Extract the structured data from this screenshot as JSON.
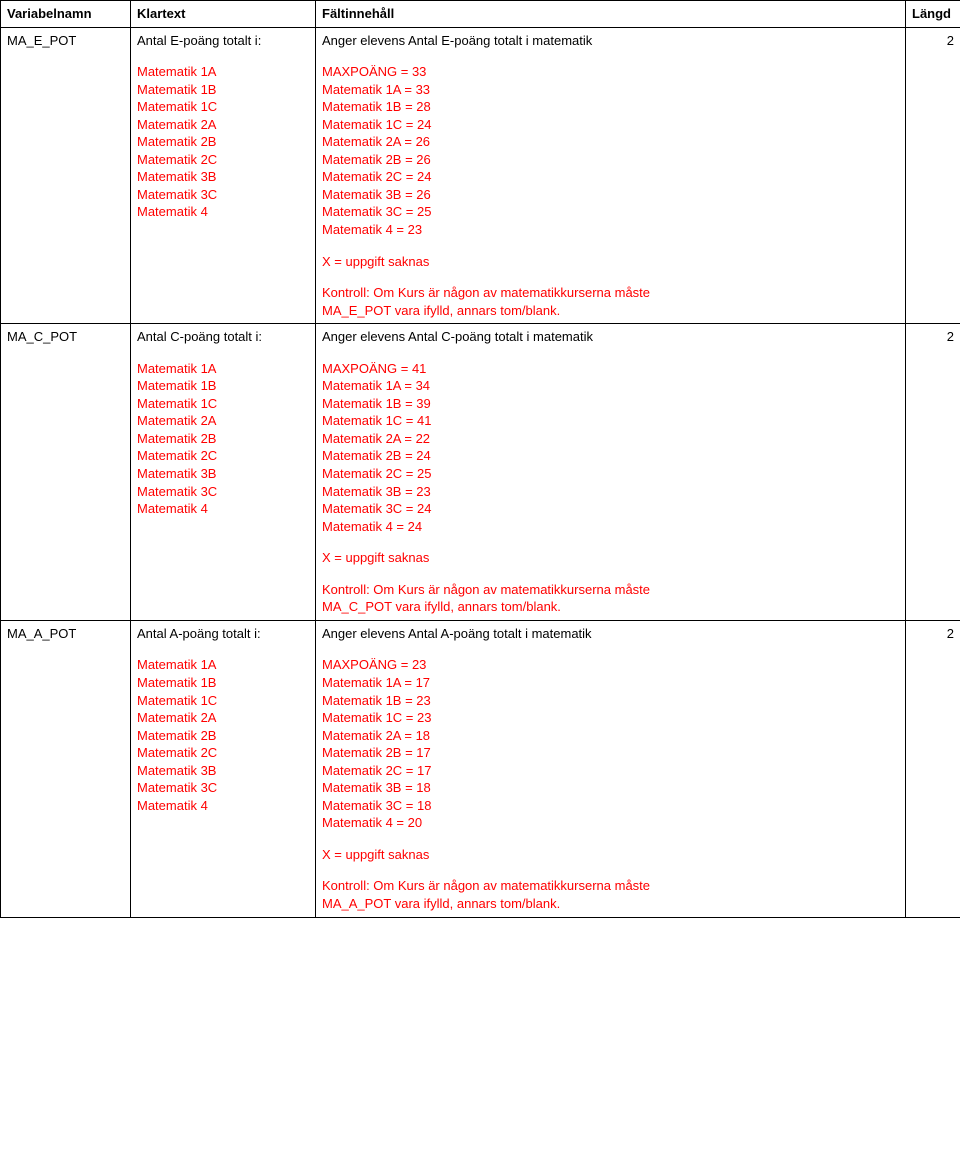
{
  "headers": {
    "var": "Variabelnamn",
    "klar": "Klartext",
    "falt": "Fältinnehåll",
    "len": "Längd"
  },
  "math_courses": [
    "Matematik 1A",
    "Matematik 1B",
    "Matematik 1C",
    "Matematik 2A",
    "Matematik 2B",
    "Matematik 2C",
    "Matematik 3B",
    "Matematik 3C",
    "Matematik 4"
  ],
  "rows": [
    {
      "var": "MA_E_POT",
      "klar_top": "Antal E-poäng totalt i:",
      "angere": "Anger elevens Antal E-poäng totalt i matematik",
      "max": "MAXPOÄNG = 33",
      "vals": [
        "Matematik 1A = 33",
        "Matematik 1B = 28",
        "Matematik 1C = 24",
        "Matematik 2A = 26",
        "Matematik 2B = 26",
        "Matematik 2C = 24",
        "Matematik 3B = 26",
        "Matematik 3C = 25",
        "Matematik 4 = 23"
      ],
      "x": "X = uppgift saknas",
      "kontroll1": "Kontroll: Om Kurs är någon av matematikkurserna måste",
      "kontroll2": "MA_E_POT vara ifylld, annars tom/blank.",
      "len": "2"
    },
    {
      "var": "MA_C_POT",
      "klar_top": "Antal C-poäng totalt i:",
      "angere": " Anger elevens Antal C-poäng totalt i matematik",
      "max": "MAXPOÄNG = 41",
      "vals": [
        "Matematik 1A = 34",
        "Matematik 1B = 39",
        "Matematik 1C = 41",
        "Matematik 2A = 22",
        "Matematik 2B = 24",
        "Matematik 2C = 25",
        "Matematik 3B = 23",
        "Matematik 3C = 24",
        "Matematik 4 = 24"
      ],
      "x": "X = uppgift saknas",
      "kontroll1": "Kontroll: Om Kurs är någon av matematikkurserna måste",
      "kontroll2": "MA_C_POT vara ifylld, annars tom/blank.",
      "len": "2"
    },
    {
      "var": "MA_A_POT",
      "klar_top": "Antal A-poäng totalt i:",
      "angere": "Anger elevens Antal A-poäng totalt i matematik",
      "max": "MAXPOÄNG = 23",
      "vals": [
        "Matematik 1A = 17",
        "Matematik 1B = 23",
        "Matematik 1C = 23",
        "Matematik 2A = 18",
        "Matematik 2B = 17",
        "Matematik 2C = 17",
        "Matematik 3B = 18",
        "Matematik 3C = 18",
        "Matematik 4 = 20"
      ],
      "x": "X = uppgift saknas",
      "kontroll1": "Kontroll: Om Kurs är någon av matematikkurserna måste",
      "kontroll2": "MA_A_POT vara ifylld, annars tom/blank.",
      "len": "2"
    }
  ]
}
